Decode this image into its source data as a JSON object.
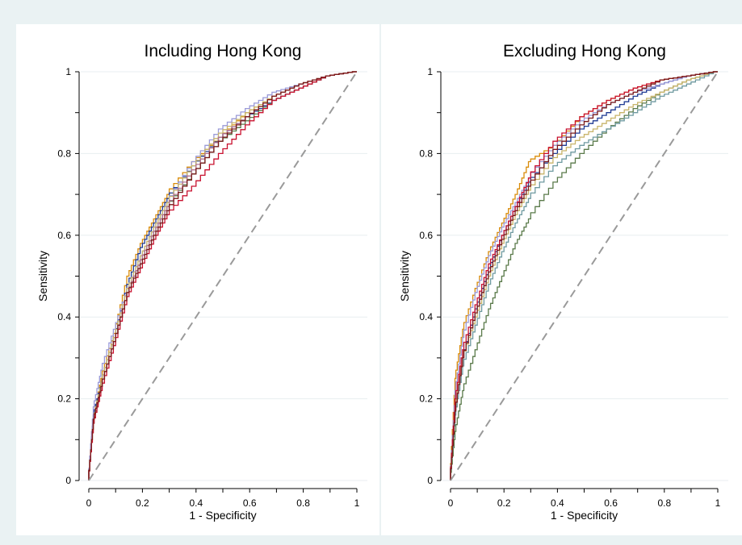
{
  "chart_data": [
    {
      "type": "line",
      "title": "Including Hong Kong",
      "xlabel": "1 - Specificity",
      "ylabel": "Sensitivity",
      "xlim": [
        0,
        1
      ],
      "ylim": [
        0,
        1
      ],
      "xticks": [
        "0",
        "0.2",
        "0.4",
        "0.6",
        "0.8",
        "1"
      ],
      "yticks": [
        "0",
        "0.2",
        "0.4",
        "0.6",
        "0.8",
        "1"
      ],
      "grid": true,
      "reference_line": {
        "x": [
          0,
          1
        ],
        "y": [
          0,
          1
        ],
        "style": "dashed",
        "color": "#9a9a9a"
      },
      "series": [
        {
          "color": "#d98c0a",
          "x": [
            0,
            0.02,
            0.05,
            0.1,
            0.15,
            0.2,
            0.25,
            0.3,
            0.4,
            0.5,
            0.6,
            0.7,
            0.8,
            0.9,
            1.0
          ],
          "y": [
            0,
            0.15,
            0.25,
            0.36,
            0.5,
            0.58,
            0.64,
            0.7,
            0.78,
            0.84,
            0.9,
            0.94,
            0.97,
            0.99,
            1.0
          ]
        },
        {
          "color": "#1f3a93",
          "x": [
            0,
            0.02,
            0.05,
            0.1,
            0.15,
            0.2,
            0.25,
            0.3,
            0.4,
            0.5,
            0.6,
            0.7,
            0.8,
            0.9,
            1.0
          ],
          "y": [
            0,
            0.16,
            0.24,
            0.35,
            0.48,
            0.57,
            0.63,
            0.69,
            0.77,
            0.84,
            0.89,
            0.93,
            0.96,
            0.99,
            1.0
          ]
        },
        {
          "color": "#9a9ad8",
          "x": [
            0,
            0.02,
            0.05,
            0.1,
            0.15,
            0.2,
            0.25,
            0.3,
            0.4,
            0.5,
            0.6,
            0.7,
            0.8,
            0.9,
            1.0
          ],
          "y": [
            0,
            0.18,
            0.27,
            0.37,
            0.47,
            0.55,
            0.62,
            0.68,
            0.78,
            0.86,
            0.91,
            0.95,
            0.97,
            0.99,
            1.0
          ]
        },
        {
          "color": "#5a7a4a",
          "x": [
            0,
            0.02,
            0.05,
            0.1,
            0.15,
            0.2,
            0.25,
            0.3,
            0.4,
            0.5,
            0.6,
            0.7,
            0.8,
            0.9,
            1.0
          ],
          "y": [
            0,
            0.14,
            0.23,
            0.34,
            0.46,
            0.54,
            0.61,
            0.67,
            0.75,
            0.83,
            0.88,
            0.93,
            0.96,
            0.99,
            1.0
          ]
        },
        {
          "color": "#c8b46a",
          "x": [
            0,
            0.02,
            0.05,
            0.1,
            0.15,
            0.2,
            0.25,
            0.3,
            0.4,
            0.5,
            0.6,
            0.7,
            0.8,
            0.9,
            1.0
          ],
          "y": [
            0,
            0.15,
            0.24,
            0.35,
            0.47,
            0.55,
            0.62,
            0.68,
            0.77,
            0.85,
            0.9,
            0.94,
            0.97,
            0.99,
            1.0
          ]
        },
        {
          "color": "#b07090",
          "x": [
            0,
            0.02,
            0.05,
            0.1,
            0.15,
            0.2,
            0.25,
            0.3,
            0.4,
            0.5,
            0.6,
            0.7,
            0.8,
            0.9,
            1.0
          ],
          "y": [
            0,
            0.15,
            0.23,
            0.34,
            0.46,
            0.54,
            0.61,
            0.67,
            0.76,
            0.84,
            0.89,
            0.94,
            0.97,
            0.99,
            1.0
          ]
        },
        {
          "color": "#c8102e",
          "x": [
            0,
            0.02,
            0.05,
            0.1,
            0.15,
            0.2,
            0.25,
            0.3,
            0.4,
            0.5,
            0.6,
            0.7,
            0.8,
            0.9,
            1.0
          ],
          "y": [
            0,
            0.14,
            0.22,
            0.33,
            0.45,
            0.52,
            0.59,
            0.65,
            0.72,
            0.8,
            0.87,
            0.93,
            0.96,
            0.99,
            1.0
          ]
        },
        {
          "color": "#7a1a1a",
          "x": [
            0,
            0.02,
            0.05,
            0.1,
            0.15,
            0.2,
            0.25,
            0.3,
            0.4,
            0.5,
            0.6,
            0.7,
            0.8,
            0.9,
            1.0
          ],
          "y": [
            0,
            0.15,
            0.23,
            0.34,
            0.46,
            0.53,
            0.6,
            0.66,
            0.75,
            0.83,
            0.89,
            0.94,
            0.97,
            0.99,
            1.0
          ]
        }
      ]
    },
    {
      "type": "line",
      "title": "Excluding Hong Kong",
      "xlabel": "1 - Specificity",
      "ylabel": "Sensitivity",
      "xlim": [
        0,
        1
      ],
      "ylim": [
        0,
        1
      ],
      "xticks": [
        "0",
        "0.2",
        "0.4",
        "0.6",
        "0.8",
        "1"
      ],
      "yticks": [
        "0",
        "0.2",
        "0.4",
        "0.6",
        "0.8",
        "1"
      ],
      "grid": true,
      "reference_line": {
        "x": [
          0,
          1
        ],
        "y": [
          0,
          1
        ],
        "style": "dashed",
        "color": "#9a9a9a"
      },
      "series": [
        {
          "color": "#d98c0a",
          "x": [
            0,
            0.02,
            0.05,
            0.1,
            0.15,
            0.2,
            0.25,
            0.3,
            0.4,
            0.5,
            0.6,
            0.7,
            0.8,
            0.9,
            1.0
          ],
          "y": [
            0,
            0.25,
            0.37,
            0.47,
            0.56,
            0.63,
            0.7,
            0.78,
            0.82,
            0.89,
            0.93,
            0.96,
            0.98,
            0.99,
            1.0
          ]
        },
        {
          "color": "#1f3a93",
          "x": [
            0,
            0.02,
            0.05,
            0.1,
            0.15,
            0.2,
            0.25,
            0.3,
            0.4,
            0.5,
            0.6,
            0.7,
            0.8,
            0.9,
            1.0
          ],
          "y": [
            0,
            0.18,
            0.3,
            0.42,
            0.52,
            0.6,
            0.67,
            0.73,
            0.8,
            0.86,
            0.9,
            0.94,
            0.97,
            0.99,
            1.0
          ]
        },
        {
          "color": "#9a9ad8",
          "x": [
            0,
            0.02,
            0.05,
            0.1,
            0.15,
            0.2,
            0.25,
            0.3,
            0.4,
            0.5,
            0.6,
            0.7,
            0.8,
            0.9,
            1.0
          ],
          "y": [
            0,
            0.22,
            0.35,
            0.46,
            0.55,
            0.62,
            0.68,
            0.74,
            0.82,
            0.88,
            0.92,
            0.95,
            0.97,
            0.99,
            1.0
          ]
        },
        {
          "color": "#5a7a4a",
          "x": [
            0,
            0.02,
            0.05,
            0.1,
            0.15,
            0.2,
            0.25,
            0.3,
            0.4,
            0.5,
            0.6,
            0.7,
            0.8,
            0.9,
            1.0
          ],
          "y": [
            0,
            0.12,
            0.22,
            0.32,
            0.42,
            0.5,
            0.58,
            0.64,
            0.73,
            0.8,
            0.86,
            0.91,
            0.95,
            0.98,
            1.0
          ]
        },
        {
          "color": "#c8b46a",
          "x": [
            0,
            0.02,
            0.05,
            0.1,
            0.15,
            0.2,
            0.25,
            0.3,
            0.4,
            0.5,
            0.6,
            0.7,
            0.8,
            0.9,
            1.0
          ],
          "y": [
            0,
            0.18,
            0.3,
            0.4,
            0.5,
            0.58,
            0.65,
            0.71,
            0.79,
            0.84,
            0.88,
            0.92,
            0.95,
            0.98,
            1.0
          ]
        },
        {
          "color": "#6f9aa0",
          "x": [
            0,
            0.02,
            0.05,
            0.1,
            0.15,
            0.2,
            0.25,
            0.3,
            0.4,
            0.5,
            0.6,
            0.7,
            0.8,
            0.9,
            1.0
          ],
          "y": [
            0,
            0.16,
            0.28,
            0.38,
            0.48,
            0.56,
            0.63,
            0.69,
            0.77,
            0.82,
            0.86,
            0.9,
            0.94,
            0.97,
            1.0
          ]
        },
        {
          "color": "#c8102e",
          "x": [
            0,
            0.02,
            0.05,
            0.1,
            0.15,
            0.2,
            0.25,
            0.3,
            0.4,
            0.5,
            0.6,
            0.7,
            0.8,
            0.9,
            1.0
          ],
          "y": [
            0,
            0.2,
            0.32,
            0.43,
            0.53,
            0.6,
            0.67,
            0.74,
            0.83,
            0.89,
            0.93,
            0.96,
            0.98,
            0.99,
            1.0
          ]
        },
        {
          "color": "#7a1a1a",
          "x": [
            0,
            0.02,
            0.05,
            0.1,
            0.15,
            0.2,
            0.25,
            0.3,
            0.4,
            0.5,
            0.6,
            0.7,
            0.8,
            0.9,
            1.0
          ],
          "y": [
            0,
            0.17,
            0.3,
            0.41,
            0.51,
            0.59,
            0.66,
            0.72,
            0.81,
            0.87,
            0.92,
            0.95,
            0.98,
            0.99,
            1.0
          ]
        }
      ]
    }
  ]
}
